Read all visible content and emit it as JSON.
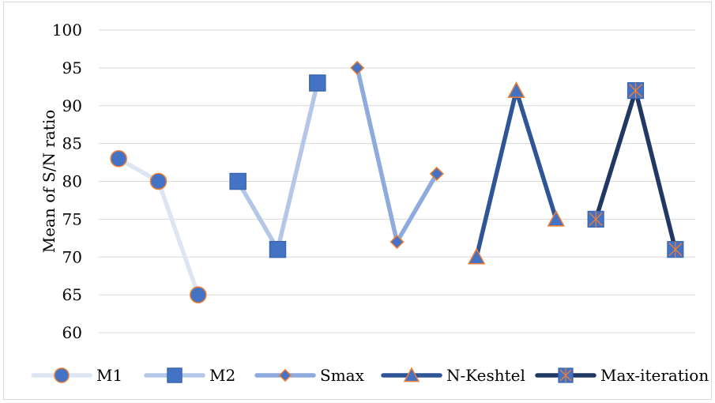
{
  "chart_data": {
    "type": "line",
    "title": "",
    "xlabel": "",
    "ylabel": "Mean of S/N ratio",
    "ylim": [
      60,
      100
    ],
    "yticks": [
      60,
      65,
      70,
      75,
      80,
      85,
      90,
      95,
      100
    ],
    "grid": true,
    "legend_position": "bottom",
    "series": [
      {
        "name": "M1",
        "marker": "circle",
        "line_color": "#dde5f2",
        "marker_fill": "#4472c4",
        "marker_edge": "#ed7d31",
        "values": [
          83,
          80,
          65
        ]
      },
      {
        "name": "M2",
        "marker": "square",
        "line_color": "#b4c7e7",
        "marker_fill": "#4472c4",
        "marker_edge": "#3b66b0",
        "values": [
          80,
          71,
          93
        ]
      },
      {
        "name": "Smax",
        "marker": "diamond",
        "line_color": "#8faadc",
        "marker_fill": "#4472c4",
        "marker_edge": "#ed7d31",
        "values": [
          95,
          72,
          81
        ]
      },
      {
        "name": "N-Keshtel",
        "marker": "triangle",
        "line_color": "#2f5597",
        "marker_fill": "#4472c4",
        "marker_edge": "#ed7d31",
        "values": [
          70,
          92,
          75
        ]
      },
      {
        "name": "Max-iteration",
        "marker": "square-x",
        "line_color": "#203864",
        "marker_fill": "#4472c4",
        "marker_edge": "#ed7d31",
        "values": [
          75,
          92,
          71
        ]
      }
    ]
  }
}
